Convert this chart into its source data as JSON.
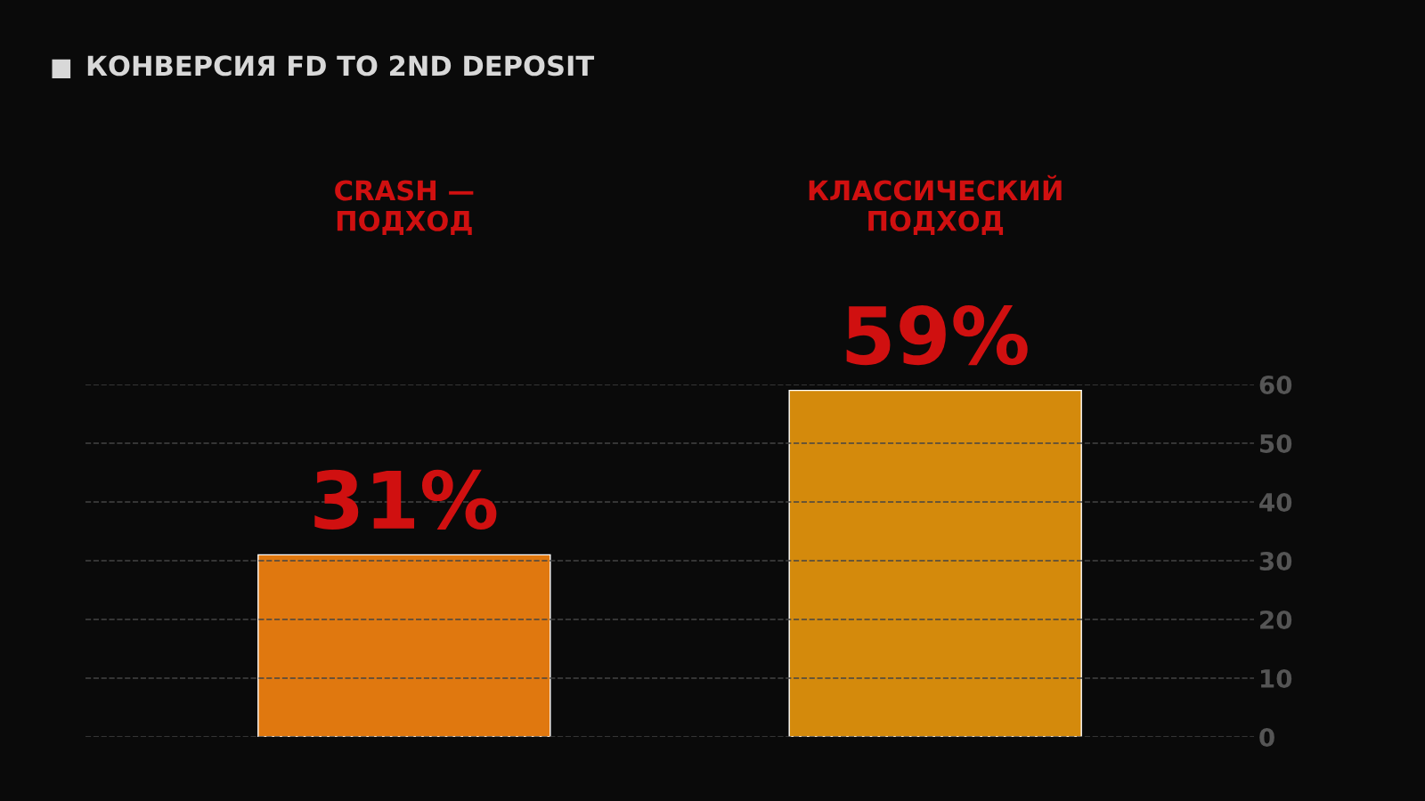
{
  "chart_data": {
    "type": "bar",
    "title": "КОНВЕРСИЯ FD TO 2ND DEPOSIT",
    "categories": [
      "CRASH —\nПОДХОД",
      "КЛАССИЧЕСКИЙ\nПОДХОД"
    ],
    "values": [
      31,
      59
    ],
    "value_labels": [
      "31%",
      "59%"
    ],
    "colors": [
      "#e0780f",
      "#d48a0c"
    ],
    "ylim": [
      0,
      60
    ],
    "yticks": [
      0,
      10,
      20,
      30,
      40,
      50,
      60
    ],
    "grid": "y"
  }
}
